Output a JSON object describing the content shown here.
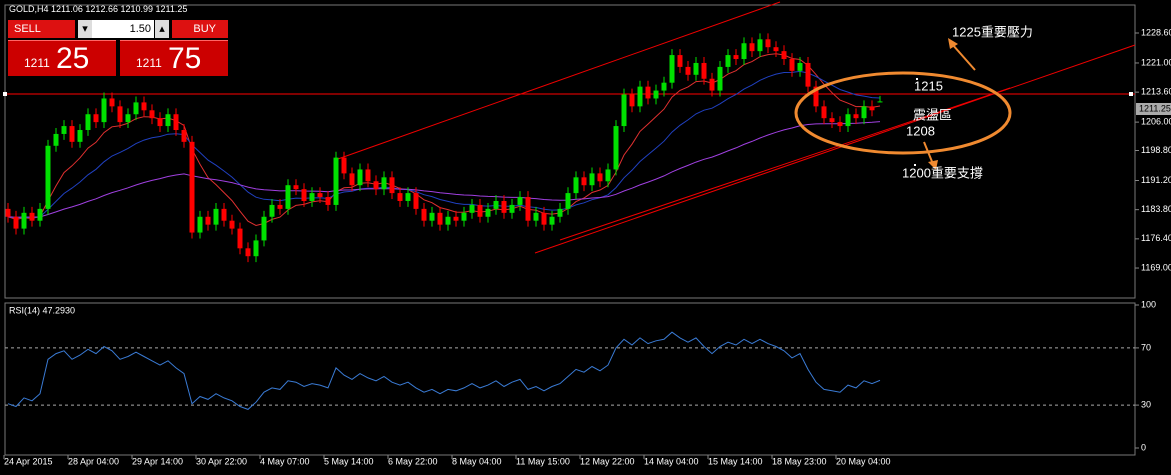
{
  "chart_data": {
    "type": "candlestick",
    "symbol": "GOLD,H4",
    "candles": {
      "open": [
        1184,
        1182,
        1179,
        1183,
        1181,
        1184,
        1200,
        1203,
        1205,
        1201,
        1204,
        1208,
        1206,
        1212,
        1210,
        1206,
        1208,
        1211,
        1209,
        1207,
        1205,
        1208,
        1204,
        1201,
        1178,
        1182,
        1180,
        1184,
        1181,
        1179,
        1174,
        1172,
        1176,
        1182,
        1185,
        1184,
        1190,
        1189,
        1186,
        1188,
        1187,
        1185,
        1197,
        1193,
        1190,
        1194,
        1191,
        1189,
        1192,
        1188,
        1186,
        1188,
        1184,
        1181,
        1183,
        1180,
        1182,
        1181,
        1183,
        1185,
        1182,
        1184,
        1186,
        1183,
        1185,
        1187,
        1181,
        1183,
        1180,
        1182,
        1184,
        1188,
        1192,
        1190,
        1193,
        1191,
        1194,
        1205,
        1213,
        1210,
        1215,
        1212,
        1214,
        1216,
        1223,
        1220,
        1218,
        1221,
        1217,
        1214,
        1220,
        1223,
        1222,
        1226,
        1224,
        1227,
        1225,
        1224,
        1222,
        1219,
        1221,
        1215,
        1210,
        1207,
        1206,
        1205,
        1208,
        1207,
        1210,
        1211.06
      ],
      "high": [
        1185.5,
        1183.5,
        1184.5,
        1184.5,
        1185.5,
        1201.5,
        1204.5,
        1206.5,
        1206.5,
        1205.5,
        1209.5,
        1209.5,
        1213.5,
        1213.5,
        1211.5,
        1209.5,
        1212.5,
        1212.5,
        1210.5,
        1208.5,
        1209.5,
        1209.5,
        1205.5,
        1202.5,
        1183.5,
        1183.5,
        1185.5,
        1185.5,
        1182.5,
        1180.5,
        1175.5,
        1177.5,
        1183.5,
        1186.5,
        1186.5,
        1191.5,
        1191.5,
        1190.5,
        1189.5,
        1189.5,
        1188.5,
        1198.5,
        1198.5,
        1194.5,
        1195.5,
        1195.5,
        1192.5,
        1193.5,
        1193.5,
        1189.5,
        1189.5,
        1189.5,
        1185.5,
        1184.5,
        1184.5,
        1183.5,
        1183.5,
        1184.5,
        1186.5,
        1186.5,
        1185.5,
        1187.5,
        1187.5,
        1186.5,
        1188.5,
        1188.5,
        1184.5,
        1184.5,
        1183.5,
        1185.5,
        1189.5,
        1193.5,
        1193.5,
        1194.5,
        1194.5,
        1195.5,
        1206.5,
        1214.5,
        1214.5,
        1216.5,
        1216.5,
        1215.5,
        1217.5,
        1224.5,
        1224.5,
        1221.5,
        1222.5,
        1222.5,
        1218.5,
        1221.5,
        1224.5,
        1224.5,
        1227.5,
        1227.5,
        1228.5,
        1228.5,
        1226.5,
        1225.5,
        1223.5,
        1222.5,
        1222.5,
        1216.5,
        1211.5,
        1208.5,
        1207.5,
        1209.5,
        1209.5,
        1211.5,
        1211.5,
        1212.66
      ],
      "low": [
        1180.5,
        1177.5,
        1177.5,
        1179.5,
        1179.5,
        1182.5,
        1198.5,
        1201.5,
        1199.5,
        1199.5,
        1202.5,
        1204.5,
        1204.5,
        1208.5,
        1204.5,
        1204.5,
        1206.5,
        1207.5,
        1205.5,
        1203.5,
        1203.5,
        1202.5,
        1199.5,
        1176.5,
        1176.5,
        1178.5,
        1178.5,
        1179.5,
        1177.5,
        1172.5,
        1170.5,
        1170.5,
        1174.5,
        1180.5,
        1182.5,
        1182.5,
        1187.5,
        1184.5,
        1184.5,
        1185.5,
        1183.5,
        1183.5,
        1191.5,
        1188.5,
        1188.5,
        1189.5,
        1187.5,
        1187.5,
        1186.5,
        1184.5,
        1184.5,
        1182.5,
        1179.5,
        1179.5,
        1178.5,
        1178.5,
        1179.5,
        1179.5,
        1181.5,
        1180.5,
        1180.5,
        1182.5,
        1181.5,
        1181.5,
        1183.5,
        1179.5,
        1179.5,
        1178.5,
        1178.5,
        1180.5,
        1182.5,
        1186.5,
        1188.5,
        1188.5,
        1189.5,
        1189.5,
        1192.5,
        1203.5,
        1208.5,
        1208.5,
        1210.5,
        1210.5,
        1212.5,
        1214.5,
        1218.5,
        1216.5,
        1216.5,
        1215.5,
        1212.5,
        1212.5,
        1218.5,
        1220.5,
        1220.5,
        1222.5,
        1222.5,
        1223.5,
        1222.5,
        1220.5,
        1217.5,
        1217.5,
        1213.5,
        1208.5,
        1205.5,
        1204.5,
        1203.5,
        1203.5,
        1205.5,
        1205.5,
        1207.5,
        1210.99
      ],
      "close": [
        1182,
        1179,
        1183,
        1181,
        1184,
        1200,
        1203,
        1205,
        1201,
        1204,
        1208,
        1206,
        1212,
        1210,
        1206,
        1208,
        1211,
        1209,
        1207,
        1205,
        1208,
        1204,
        1201,
        1178,
        1182,
        1180,
        1184,
        1181,
        1179,
        1174,
        1172,
        1176,
        1182,
        1185,
        1184,
        1190,
        1189,
        1186,
        1188,
        1187,
        1185,
        1197,
        1193,
        1190,
        1194,
        1191,
        1189,
        1192,
        1188,
        1186,
        1188,
        1184,
        1181,
        1183,
        1180,
        1182,
        1181,
        1183,
        1185,
        1182,
        1184,
        1186,
        1183,
        1185,
        1187,
        1181,
        1183,
        1180,
        1182,
        1184,
        1188,
        1192,
        1190,
        1193,
        1191,
        1194,
        1205,
        1213,
        1210,
        1215,
        1212,
        1214,
        1216,
        1223,
        1220,
        1218,
        1221,
        1217,
        1214,
        1220,
        1223,
        1222,
        1226,
        1224,
        1227,
        1225,
        1224,
        1222,
        1219,
        1221,
        1215,
        1210,
        1207,
        1206,
        1205,
        1208,
        1207,
        1210,
        1209,
        1211.25
      ]
    },
    "categories": [
      "24 Apr 2015",
      null,
      null,
      null,
      null,
      null,
      null,
      null,
      "28 Apr 04:00",
      null,
      null,
      null,
      null,
      null,
      null,
      null,
      "29 Apr 14:00",
      null,
      null,
      null,
      null,
      null,
      null,
      null,
      "30 Apr 22:00",
      null,
      null,
      null,
      null,
      null,
      null,
      null,
      "4 May 07:00",
      null,
      null,
      null,
      null,
      null,
      null,
      null,
      "5 May 14:00",
      null,
      null,
      null,
      null,
      null,
      null,
      null,
      "6 May 22:00",
      null,
      null,
      null,
      null,
      null,
      null,
      null,
      "8 May 04:00",
      null,
      null,
      null,
      null,
      null,
      null,
      null,
      "11 May 15:00",
      null,
      null,
      null,
      null,
      null,
      null,
      null,
      "12 May 22:00",
      null,
      null,
      null,
      null,
      null,
      null,
      null,
      "14 May 04:00",
      null,
      null,
      null,
      null,
      null,
      null,
      null,
      "15 May 14:00",
      null,
      null,
      null,
      null,
      null,
      null,
      null,
      "18 May 23:00",
      null,
      null,
      null,
      null,
      null,
      null,
      null,
      "20 May 04:00",
      null,
      null,
      null,
      null,
      null
    ],
    "ylim": [
      1161.4,
      1235.7
    ],
    "yticks": [
      {
        "value": 1228.6,
        "label": "1228.60"
      },
      {
        "value": 1221,
        "label": "1221.00"
      },
      {
        "value": 1213.6,
        "label": "1213.60"
      },
      {
        "value": 1206,
        "label": "1206.00"
      },
      {
        "value": 1198.8,
        "label": "1198.80"
      },
      {
        "value": 1191.2,
        "label": "1191.20"
      },
      {
        "value": 1183.8,
        "label": "1183.80"
      },
      {
        "value": 1176.4,
        "label": "1176.40"
      },
      {
        "value": 1169,
        "label": "1169.00"
      }
    ],
    "up_color": "#00e000",
    "down_color": "#ff0000",
    "annotations": [
      "1225重要壓力",
      "1215",
      "震盪區",
      "1208",
      "1200重要支撐"
    ],
    "rsi": {
      "title": "RSI(14) 47.2930",
      "color": "#3a7bd5",
      "values": [
        31,
        29,
        35,
        33,
        38,
        62,
        66,
        68,
        62,
        65,
        69,
        66,
        71,
        68,
        62,
        64,
        67,
        64,
        61,
        58,
        61,
        56,
        52,
        31,
        36,
        34,
        38,
        35,
        33,
        29,
        27,
        32,
        39,
        42,
        41,
        47,
        46,
        43,
        45,
        44,
        42,
        56,
        51,
        48,
        52,
        49,
        47,
        50,
        46,
        44,
        46,
        42,
        39,
        41,
        38,
        41,
        40,
        42,
        45,
        42,
        44,
        47,
        43,
        46,
        48,
        41,
        43,
        40,
        43,
        45,
        50,
        55,
        53,
        57,
        54,
        58,
        70,
        76,
        72,
        77,
        73,
        75,
        76,
        81,
        77,
        74,
        77,
        71,
        66,
        71,
        74,
        72,
        76,
        73,
        76,
        73,
        71,
        68,
        63,
        66,
        55,
        46,
        41,
        40,
        39,
        44,
        42,
        47,
        45,
        47.29
      ],
      "ylim": [
        0,
        100
      ],
      "yticks": [
        0,
        30,
        70,
        100
      ],
      "levels": [
        30,
        70
      ]
    }
  },
  "trade_panel": {
    "sell": "SELL",
    "buy": "BUY",
    "lot": "1.50",
    "sell_price": {
      "base": "1211",
      "pips": "25"
    },
    "buy_price": {
      "base": "1211",
      "pips": "75"
    }
  }
}
